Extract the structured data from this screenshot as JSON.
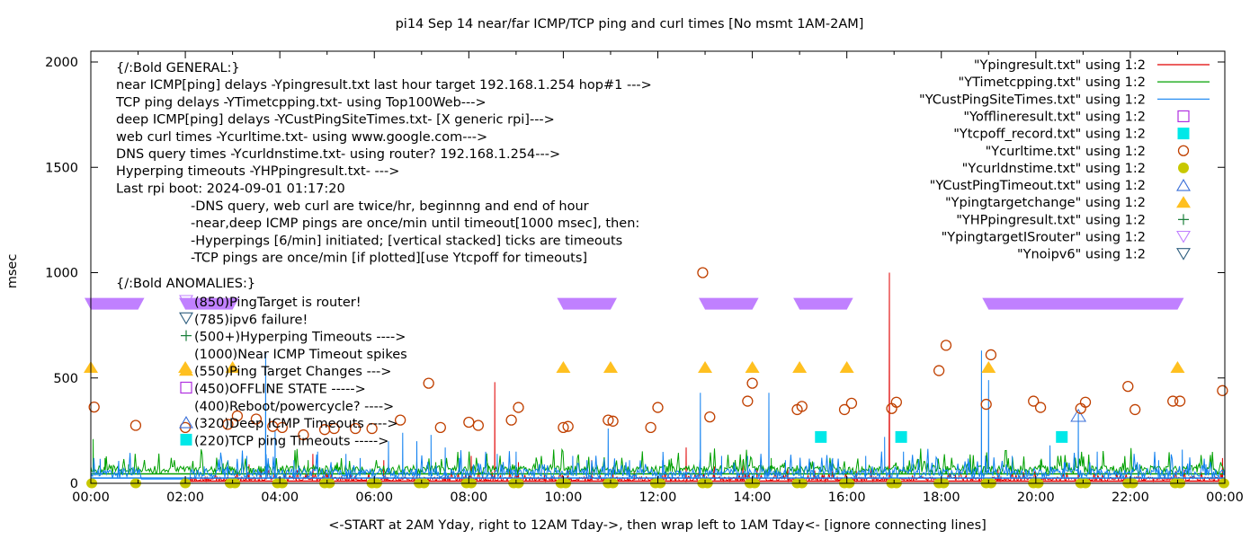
{
  "chart_data": {
    "type": "line",
    "title": "pi14 Sep 14  near/far ICMP/TCP ping and curl times [No msmt 1AM-2AM]",
    "xlabel": "<-START at 2AM Yday, right to 12AM Tday->, then wrap left to 1AM Tday<- [ignore connecting lines]",
    "ylabel": "msec",
    "xlim_hours": [
      0,
      24
    ],
    "ylim": [
      0,
      2050
    ],
    "grid": false,
    "legend_position": "top-right",
    "x_ticks": [
      "00:00",
      "02:00",
      "04:00",
      "06:00",
      "08:00",
      "10:00",
      "12:00",
      "14:00",
      "16:00",
      "18:00",
      "20:00",
      "22:00",
      "00:00"
    ],
    "y_ticks": [
      0,
      500,
      1000,
      1500,
      2000
    ],
    "annotations": {
      "general": [
        "{/:Bold GENERAL:}",
        "near ICMP[ping] delays -Ypingresult.txt last hour target 192.168.1.254 hop#1 --->",
        "TCP ping delays -YTimetcpping.txt- using Top100Web--->",
        "deep ICMP[ping] delays -YCustPingSiteTimes.txt- [X generic rpi]--->",
        "web curl times -Ycurltime.txt- using www.google.com--->",
        "DNS query times -Ycurldnstime.txt- using router? 192.168.1.254--->",
        "Hyperping timeouts -YHPpingresult.txt- --->",
        "Last rpi boot: 2024-09-01 01:17:20"
      ],
      "notes": [
        "-DNS query, web curl are twice/hr, beginnng and end of hour",
        "-near,deep ICMP pings are once/min until timeout[1000 msec], then:",
        "  -Hyperpings [6/min] initiated; [vertical stacked] ticks are timeouts",
        "-TCP pings are once/min [if plotted][use Ytcpoff for timeouts]"
      ],
      "anomalies_title": "{/:Bold ANOMALIES:}",
      "anomalies": [
        {
          "symbol": "tri-down-open",
          "color": "#c080ff",
          "text": "(850)PingTarget is router!"
        },
        {
          "symbol": "tri-down-open",
          "color": "#2f5f7f",
          "text": "(785)ipv6 failure!"
        },
        {
          "symbol": "plus",
          "color": "#1a7f3a",
          "text": "(500+)Hyperping Timeouts ---->"
        },
        {
          "symbol": "none",
          "color": "#000000",
          "text": "(1000)Near ICMP Timeout spikes"
        },
        {
          "symbol": "tri-up-filled",
          "color": "#ffc020",
          "text": "(550)Ping Target Changes --->"
        },
        {
          "symbol": "square-open",
          "color": "#b030e0",
          "text": "(450)OFFLINE STATE ----->"
        },
        {
          "symbol": "none",
          "color": "#000000",
          "text": "(400)Reboot/powercycle? ---->"
        },
        {
          "symbol": "tri-up-open",
          "color": "#3a6fd8",
          "text": "(320)Deep ICMP Timeouts ---->"
        },
        {
          "symbol": "square-filled",
          "color": "#00e8e8",
          "text": "(220)TCP ping Timeouts ----->"
        }
      ]
    },
    "legend": [
      {
        "label": "\"Ypingresult.txt\" using 1:2",
        "style": "line",
        "color": "#e00000"
      },
      {
        "label": "\"YTimetcpping.txt\" using 1:2",
        "style": "line",
        "color": "#00a000"
      },
      {
        "label": "\"YCustPingSiteTimes.txt\" using 1:2",
        "style": "line",
        "color": "#1080f0"
      },
      {
        "label": "\"Yofflineresult.txt\" using 1:2",
        "style": "square-open",
        "color": "#b030e0"
      },
      {
        "label": "\"Ytcpoff_record.txt\" using 1:2",
        "style": "square-filled",
        "color": "#00e8e8"
      },
      {
        "label": "\"Ycurltime.txt\" using 1:2",
        "style": "circle-open",
        "color": "#c04000"
      },
      {
        "label": "\"Ycurldnstime.txt\" using 1:2",
        "style": "circle-filled",
        "color": "#c8c800"
      },
      {
        "label": "\"YCustPingTimeout.txt\" using 1:2",
        "style": "tri-up-open",
        "color": "#3a6fd8"
      },
      {
        "label": "\"Ypingtargetchange\" using 1:2",
        "style": "tri-up-filled",
        "color": "#ffc020"
      },
      {
        "label": "\"YHPpingresult.txt\" using 1:2",
        "style": "plus",
        "color": "#1a7f3a"
      },
      {
        "label": "\"YpingtargetISrouter\" using 1:2",
        "style": "tri-down-open",
        "color": "#c080ff"
      },
      {
        "label": "\"Ynoipv6\" using 1:2",
        "style": "tri-down-open",
        "color": "#2f5f7f"
      }
    ],
    "series": {
      "ypingresult": {
        "name": "Ypingresult.txt",
        "baseline_ms": 10,
        "start_hour": 2.1,
        "spikes": [
          [
            3.35,
            90
          ],
          [
            4.7,
            140
          ],
          [
            5.5,
            60
          ],
          [
            6.2,
            110
          ],
          [
            6.9,
            95
          ],
          [
            7.5,
            70
          ],
          [
            8.05,
            130
          ],
          [
            8.55,
            480
          ],
          [
            9.05,
            100
          ],
          [
            9.6,
            70
          ],
          [
            10.1,
            60
          ],
          [
            10.6,
            110
          ],
          [
            11.05,
            75
          ],
          [
            11.5,
            60
          ],
          [
            12.1,
            40
          ],
          [
            12.6,
            170
          ],
          [
            13.2,
            80
          ],
          [
            13.8,
            110
          ],
          [
            14.1,
            70
          ],
          [
            14.75,
            75
          ],
          [
            15.3,
            40
          ],
          [
            16.2,
            60
          ],
          [
            16.9,
            1000
          ],
          [
            18.3,
            45
          ],
          [
            19.2,
            70
          ],
          [
            20.9,
            90
          ],
          [
            23.95,
            120
          ]
        ]
      },
      "ytimetcpping": {
        "name": "YTimetcpping.txt",
        "baseline_ms": 45,
        "spikes": [
          [
            0.05,
            210
          ],
          [
            0.3,
            120
          ],
          [
            0.8,
            90
          ],
          [
            2.8,
            95
          ],
          [
            3.3,
            80
          ],
          [
            4.6,
            110
          ],
          [
            5.2,
            90
          ],
          [
            6.3,
            95
          ],
          [
            6.9,
            110
          ],
          [
            7.3,
            100
          ],
          [
            8.4,
            85
          ],
          [
            9.4,
            80
          ],
          [
            10.1,
            80
          ],
          [
            11.3,
            85
          ],
          [
            12.3,
            95
          ],
          [
            13.6,
            100
          ],
          [
            14.4,
            120
          ],
          [
            15.2,
            80
          ],
          [
            16.4,
            60
          ],
          [
            17.4,
            90
          ],
          [
            18.1,
            80
          ],
          [
            19.3,
            85
          ],
          [
            20.1,
            110
          ],
          [
            20.9,
            150
          ],
          [
            22.2,
            90
          ],
          [
            23.4,
            85
          ]
        ]
      },
      "ycustpingsitetimes": {
        "name": "YCustPingSiteTimes.txt",
        "baseline_ms": 25,
        "flat_gap_hours": [
          1.05,
          2.1
        ],
        "spikes": [
          [
            0.2,
            100
          ],
          [
            0.6,
            70
          ],
          [
            1.0,
            60
          ],
          [
            2.4,
            80
          ],
          [
            2.9,
            110
          ],
          [
            3.3,
            130
          ],
          [
            3.7,
            620
          ],
          [
            3.9,
            250
          ],
          [
            4.3,
            110
          ],
          [
            4.8,
            150
          ],
          [
            5.4,
            140
          ],
          [
            5.7,
            120
          ],
          [
            6.3,
            200
          ],
          [
            6.6,
            240
          ],
          [
            6.9,
            200
          ],
          [
            7.2,
            230
          ],
          [
            7.5,
            170
          ],
          [
            7.8,
            120
          ],
          [
            8.1,
            90
          ],
          [
            8.6,
            140
          ],
          [
            9.0,
            150
          ],
          [
            9.6,
            90
          ],
          [
            10.2,
            130
          ],
          [
            10.5,
            110
          ],
          [
            10.95,
            260
          ],
          [
            11.4,
            110
          ],
          [
            12.1,
            110
          ],
          [
            12.9,
            430
          ],
          [
            13.35,
            130
          ],
          [
            13.9,
            130
          ],
          [
            14.35,
            430
          ],
          [
            14.7,
            110
          ],
          [
            15.3,
            100
          ],
          [
            15.7,
            120
          ],
          [
            16.4,
            130
          ],
          [
            16.8,
            220
          ],
          [
            17.2,
            150
          ],
          [
            18.6,
            100
          ],
          [
            18.85,
            630
          ],
          [
            19.0,
            490
          ],
          [
            19.5,
            130
          ],
          [
            20.3,
            180
          ],
          [
            20.6,
            100
          ],
          [
            20.9,
            330
          ],
          [
            21.3,
            150
          ],
          [
            22.2,
            90
          ],
          [
            22.6,
            110
          ],
          [
            23.1,
            160
          ],
          [
            23.6,
            90
          ]
        ]
      }
    },
    "markers": {
      "ycurltime": [
        [
          0.07,
          362
        ],
        [
          0.95,
          275
        ],
        [
          2.0,
          265
        ],
        [
          2.9,
          280
        ],
        [
          3.1,
          320
        ],
        [
          3.5,
          305
        ],
        [
          3.85,
          270
        ],
        [
          4.05,
          265
        ],
        [
          4.5,
          230
        ],
        [
          4.95,
          255
        ],
        [
          5.15,
          260
        ],
        [
          5.6,
          260
        ],
        [
          5.95,
          260
        ],
        [
          6.55,
          300
        ],
        [
          7.15,
          475
        ],
        [
          7.4,
          265
        ],
        [
          8.0,
          290
        ],
        [
          8.2,
          275
        ],
        [
          8.9,
          300
        ],
        [
          9.05,
          360
        ],
        [
          10.0,
          265
        ],
        [
          10.1,
          270
        ],
        [
          10.95,
          300
        ],
        [
          11.05,
          295
        ],
        [
          11.85,
          265
        ],
        [
          12.0,
          360
        ],
        [
          12.95,
          1000
        ],
        [
          13.1,
          315
        ],
        [
          13.9,
          390
        ],
        [
          14.0,
          475
        ],
        [
          14.95,
          350
        ],
        [
          15.05,
          365
        ],
        [
          15.95,
          350
        ],
        [
          16.1,
          380
        ],
        [
          16.95,
          355
        ],
        [
          17.05,
          385
        ],
        [
          17.95,
          535
        ],
        [
          18.1,
          655
        ],
        [
          18.95,
          375
        ],
        [
          19.05,
          610
        ],
        [
          19.95,
          390
        ],
        [
          20.1,
          360
        ],
        [
          20.95,
          355
        ],
        [
          21.05,
          385
        ],
        [
          21.95,
          460
        ],
        [
          22.1,
          350
        ],
        [
          22.9,
          390
        ],
        [
          23.05,
          390
        ],
        [
          23.95,
          440
        ]
      ],
      "ycurldnstime": [
        0.02,
        0.95,
        2.0,
        2.95,
        3.05,
        3.95,
        4.05,
        4.95,
        5.05,
        5.95,
        6.05,
        6.95,
        7.05,
        7.95,
        8.05,
        8.95,
        9.05,
        9.95,
        10.05,
        10.95,
        11.05,
        11.95,
        12.05,
        12.95,
        13.05,
        13.95,
        14.05,
        14.95,
        15.05,
        15.95,
        16.05,
        16.95,
        17.05,
        17.95,
        18.05,
        18.95,
        19.05,
        19.95,
        20.05,
        20.95,
        21.05,
        21.95,
        22.05,
        22.95,
        23.05,
        23.98
      ],
      "ytcpoff_record_ms": 220,
      "ytcpoff_record": [
        15.45,
        17.15,
        20.55
      ],
      "ypingtargetchange_ms": 550,
      "ypingtargetchange": [
        0.0,
        2.0,
        3.0,
        10.0,
        11.0,
        13.0,
        14.0,
        15.0,
        16.0,
        19.0,
        23.0
      ],
      "ycustpingtimeout_ms": 320,
      "ycustpingtimeout": [
        20.9
      ],
      "ypingtargetisrouter_ms": 850,
      "ypingtargetisrouter_spans": [
        [
          0.0,
          1.0
        ],
        [
          2.0,
          3.0
        ],
        [
          10.0,
          11.0
        ],
        [
          13.0,
          14.0
        ],
        [
          15.0,
          16.0
        ],
        [
          19.0,
          23.0
        ]
      ],
      "yhppingresult": [],
      "yofflineresult": [],
      "ynoipv6": []
    }
  }
}
